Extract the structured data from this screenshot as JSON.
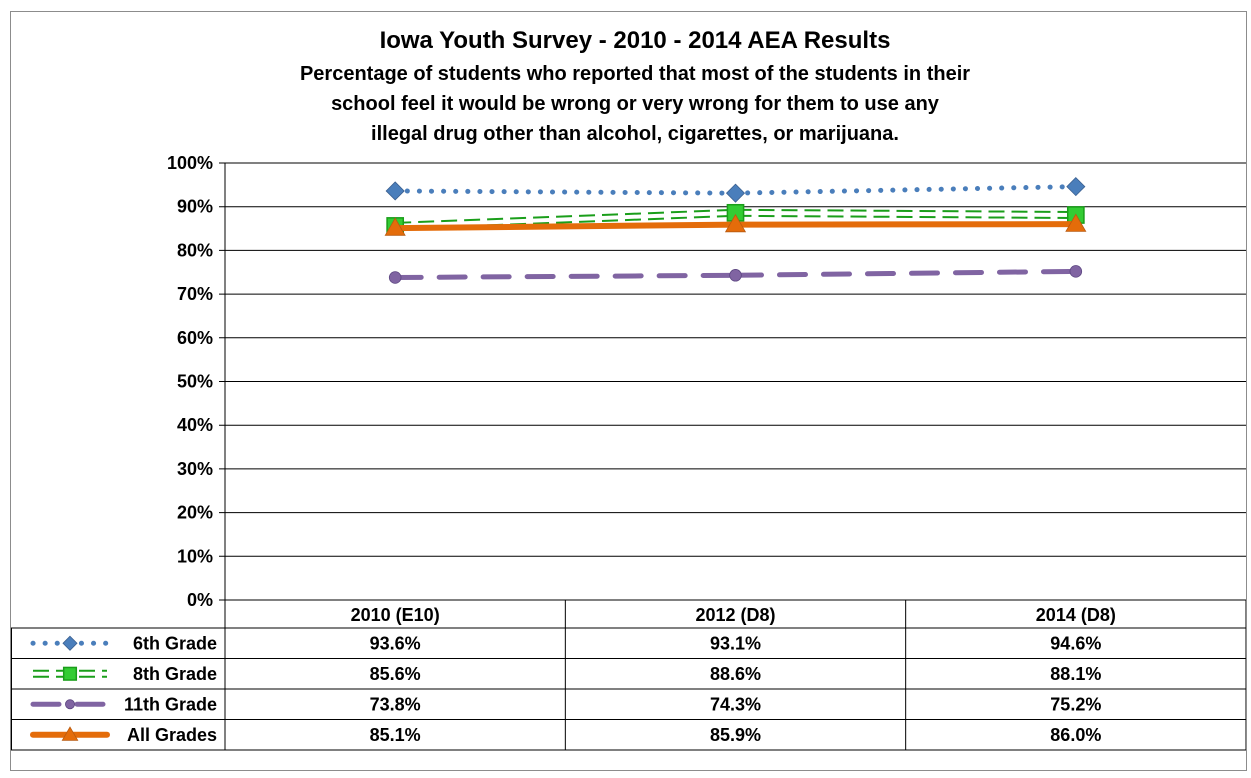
{
  "chart_data": {
    "type": "line",
    "title": "Iowa Youth Survey - 2010 - 2014 AEA Results",
    "subtitle": [
      "Percentage of students who reported that most of the students in their",
      "school feel it would be wrong or very wrong for them to use any",
      "illegal drug other than alcohol, cigarettes, or marijuana."
    ],
    "categories": [
      "2010 (E10)",
      "2012 (D8)",
      "2014 (D8)"
    ],
    "ylim": [
      0,
      100
    ],
    "yticks": [
      "0%",
      "10%",
      "20%",
      "30%",
      "40%",
      "50%",
      "60%",
      "70%",
      "80%",
      "90%",
      "100%"
    ],
    "grid": true,
    "legend": "data-table",
    "series": [
      {
        "name": "6th Grade",
        "values": [
          93.6,
          93.1,
          94.6
        ],
        "labels": [
          "93.6%",
          "93.1%",
          "94.6%"
        ],
        "color": "#4a7ebb",
        "marker": "diamond",
        "line": "dotted"
      },
      {
        "name": "8th Grade",
        "values": [
          85.6,
          88.6,
          88.1
        ],
        "labels": [
          "85.6%",
          "88.6%",
          "88.1%"
        ],
        "color": "#1a9e1a",
        "marker": "square",
        "line": "double-dashed"
      },
      {
        "name": "11th Grade",
        "values": [
          73.8,
          74.3,
          75.2
        ],
        "labels": [
          "73.8%",
          "74.3%",
          "75.2%"
        ],
        "color": "#8064a2",
        "marker": "circle",
        "line": "long-dash"
      },
      {
        "name": "All Grades",
        "values": [
          85.1,
          85.9,
          86.0
        ],
        "labels": [
          "85.1%",
          "85.9%",
          "86.0%"
        ],
        "color": "#e46c0a",
        "marker": "triangle",
        "line": "solid"
      }
    ]
  }
}
